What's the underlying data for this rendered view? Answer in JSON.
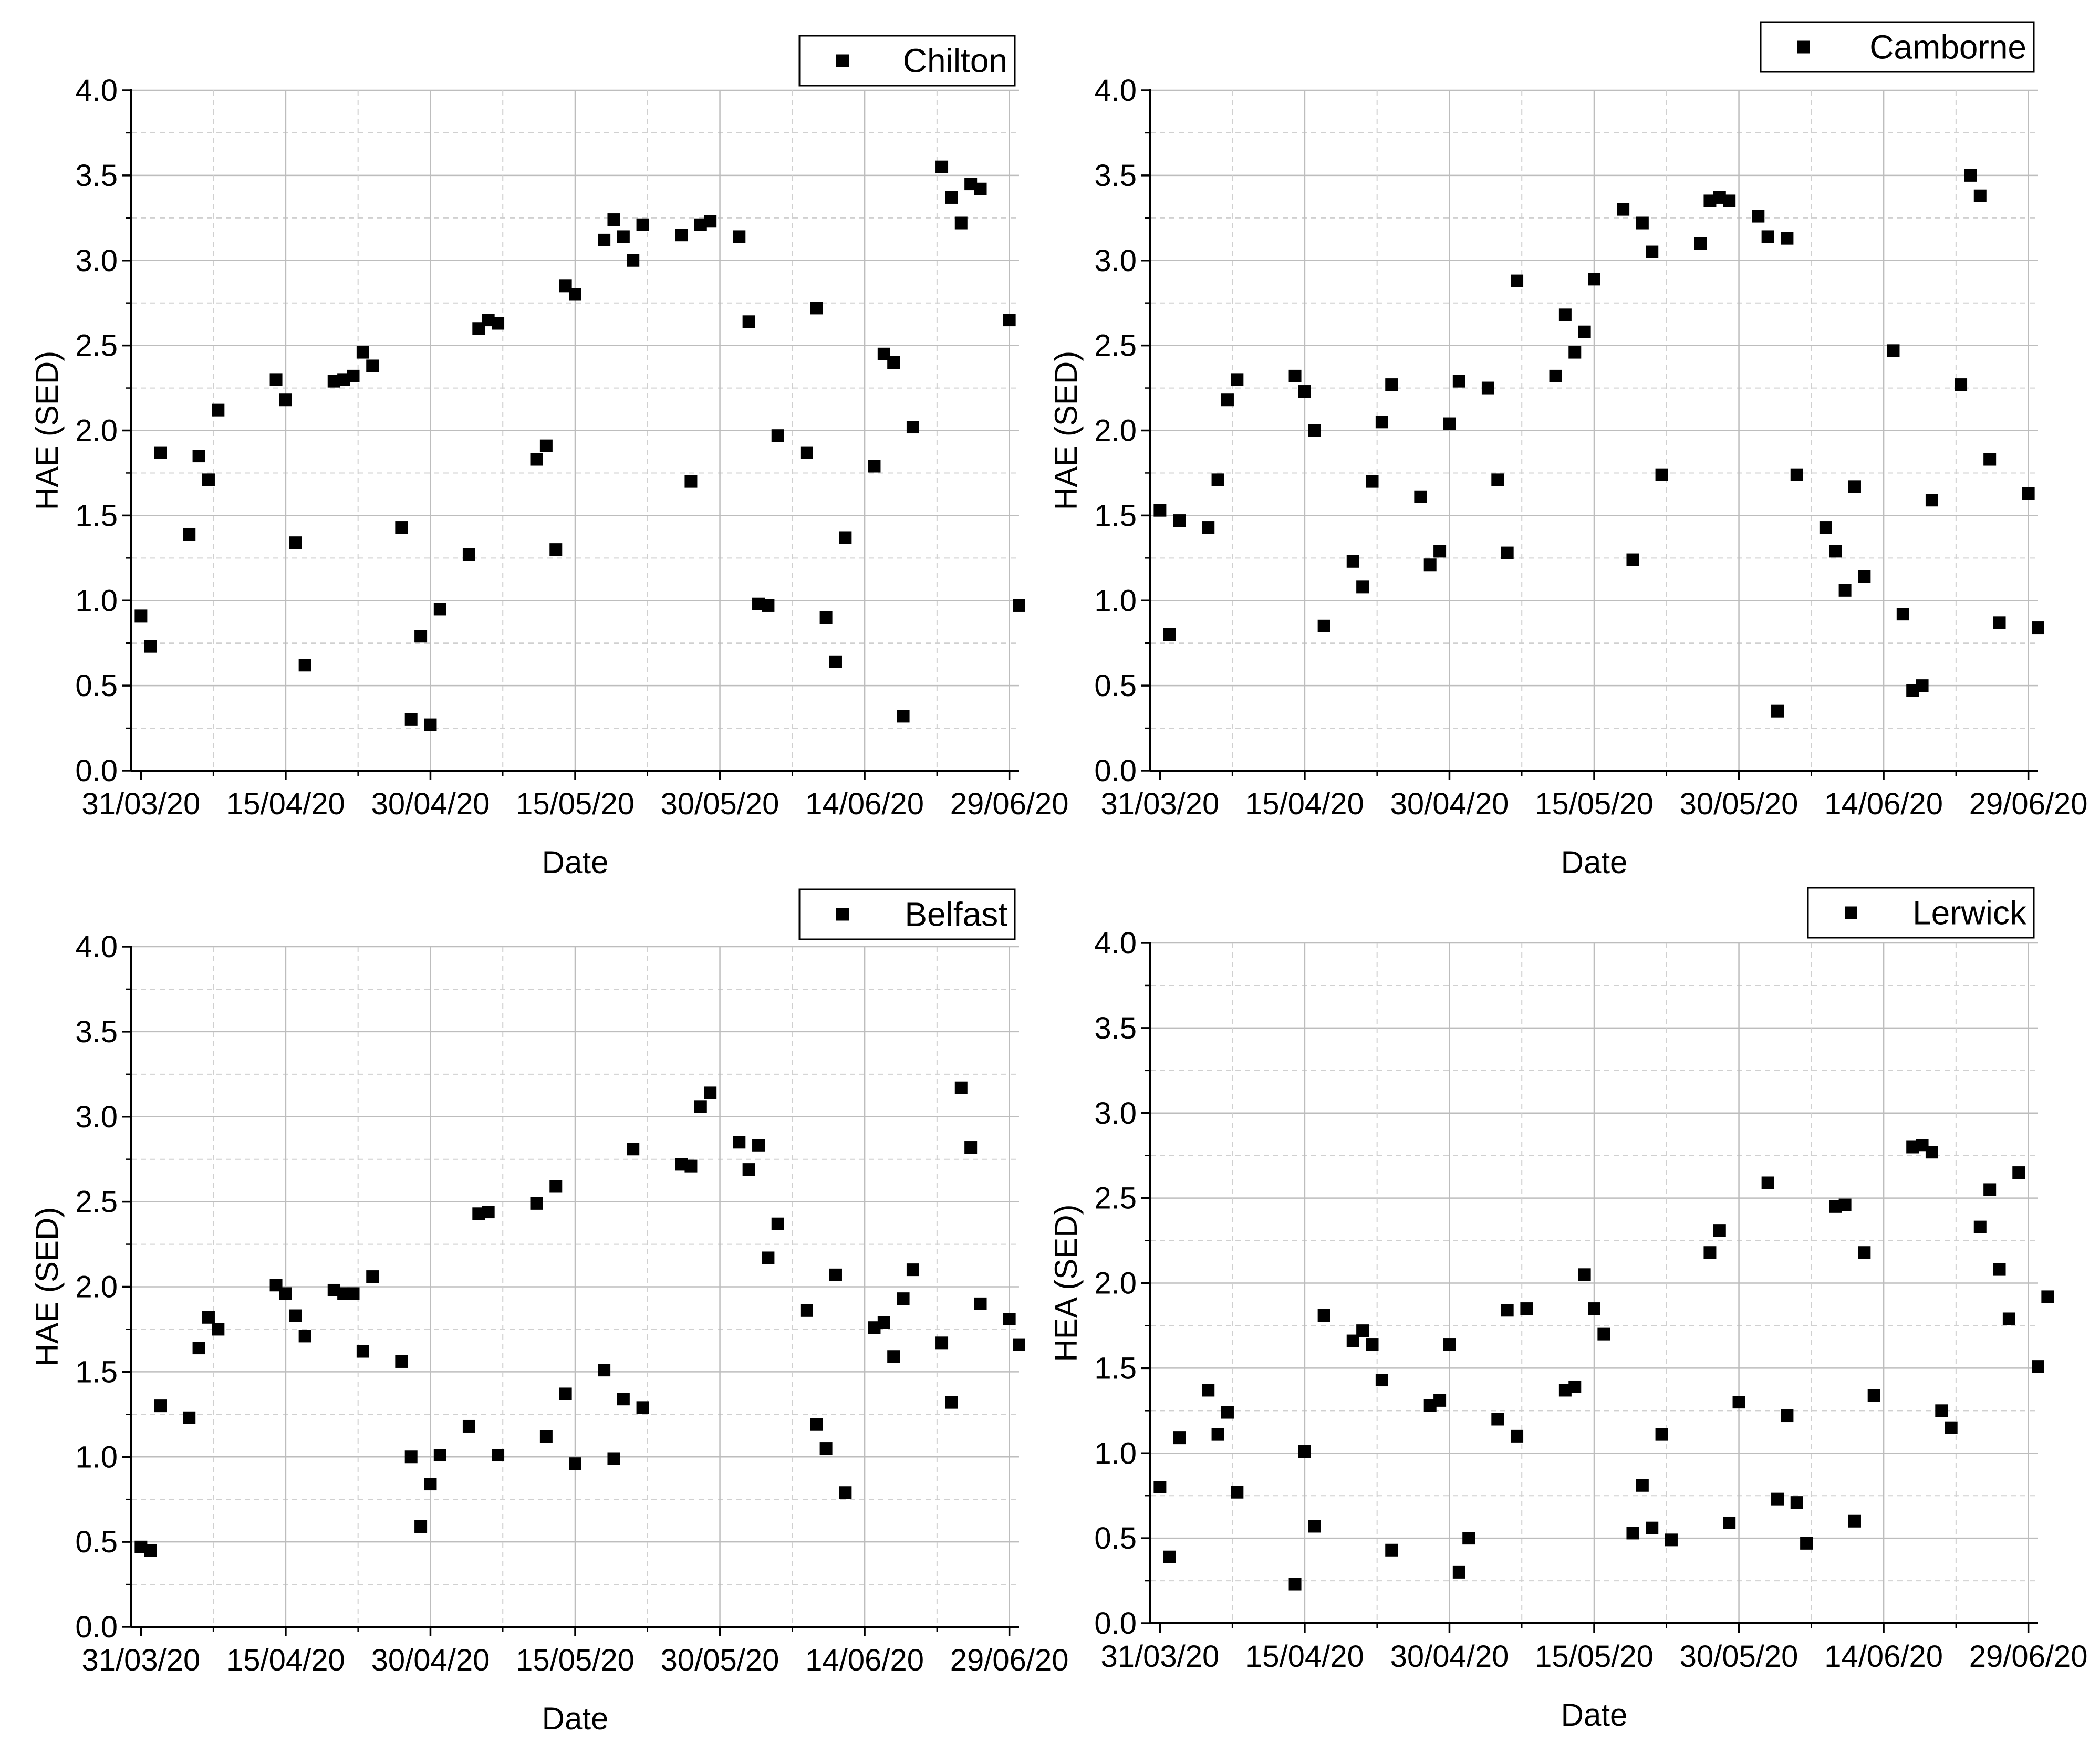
{
  "chart_data": [
    {
      "type": "scatter",
      "legend": "Chilton",
      "xlabel": "Date",
      "ylabel": "HAE (SED)",
      "xlim": [
        "30/03/20",
        "30/06/20"
      ],
      "ylim": [
        0,
        4.0
      ],
      "xticks": [
        "31/03/20",
        "15/04/20",
        "30/04/20",
        "15/05/20",
        "30/05/20",
        "14/06/20",
        "29/06/20"
      ],
      "yticks": [
        "0.0",
        "0.5",
        "1.0",
        "1.5",
        "2.0",
        "2.5",
        "3.0",
        "3.5",
        "4.0"
      ],
      "grid": true,
      "legend_position": "top-right",
      "points": [
        [
          "31/03/20",
          0.91
        ],
        [
          "01/04/20",
          0.73
        ],
        [
          "02/04/20",
          1.87
        ],
        [
          "05/04/20",
          1.39
        ],
        [
          "06/04/20",
          1.85
        ],
        [
          "07/04/20",
          1.71
        ],
        [
          "08/04/20",
          2.12
        ],
        [
          "14/04/20",
          2.3
        ],
        [
          "15/04/20",
          2.18
        ],
        [
          "16/04/20",
          1.34
        ],
        [
          "17/04/20",
          0.62
        ],
        [
          "20/04/20",
          2.29
        ],
        [
          "21/04/20",
          2.3
        ],
        [
          "22/04/20",
          2.32
        ],
        [
          "23/04/20",
          2.46
        ],
        [
          "24/04/20",
          2.38
        ],
        [
          "27/04/20",
          1.43
        ],
        [
          "28/04/20",
          0.3
        ],
        [
          "29/04/20",
          0.79
        ],
        [
          "30/04/20",
          0.27
        ],
        [
          "01/05/20",
          0.95
        ],
        [
          "04/05/20",
          1.27
        ],
        [
          "05/05/20",
          2.6
        ],
        [
          "06/05/20",
          2.65
        ],
        [
          "07/05/20",
          2.63
        ],
        [
          "11/05/20",
          1.83
        ],
        [
          "12/05/20",
          1.91
        ],
        [
          "13/05/20",
          1.3
        ],
        [
          "14/05/20",
          2.85
        ],
        [
          "15/05/20",
          2.8
        ],
        [
          "18/05/20",
          3.12
        ],
        [
          "19/05/20",
          3.24
        ],
        [
          "20/05/20",
          3.14
        ],
        [
          "21/05/20",
          3.0
        ],
        [
          "22/05/20",
          3.21
        ],
        [
          "26/05/20",
          3.15
        ],
        [
          "27/05/20",
          1.7
        ],
        [
          "28/05/20",
          3.21
        ],
        [
          "29/05/20",
          3.23
        ],
        [
          "01/06/20",
          3.14
        ],
        [
          "02/06/20",
          2.64
        ],
        [
          "03/06/20",
          0.98
        ],
        [
          "04/06/20",
          0.97
        ],
        [
          "05/06/20",
          1.97
        ],
        [
          "08/06/20",
          1.87
        ],
        [
          "09/06/20",
          2.72
        ],
        [
          "10/06/20",
          0.9
        ],
        [
          "11/06/20",
          0.64
        ],
        [
          "12/06/20",
          1.37
        ],
        [
          "15/06/20",
          1.79
        ],
        [
          "16/06/20",
          2.45
        ],
        [
          "17/06/20",
          2.4
        ],
        [
          "18/06/20",
          0.32
        ],
        [
          "19/06/20",
          2.02
        ],
        [
          "22/06/20",
          3.55
        ],
        [
          "23/06/20",
          3.37
        ],
        [
          "24/06/20",
          3.22
        ],
        [
          "25/06/20",
          3.45
        ],
        [
          "26/06/20",
          3.42
        ],
        [
          "29/06/20",
          2.65
        ],
        [
          "30/06/20",
          0.97
        ]
      ]
    },
    {
      "type": "scatter",
      "legend": "Camborne",
      "xlabel": "Date",
      "ylabel": "HAE (SED)",
      "xlim": [
        "30/03/20",
        "30/06/20"
      ],
      "ylim": [
        0,
        4.0
      ],
      "xticks": [
        "31/03/20",
        "15/04/20",
        "30/04/20",
        "15/05/20",
        "30/05/20",
        "14/06/20",
        "29/06/20"
      ],
      "yticks": [
        "0.0",
        "0.5",
        "1.0",
        "1.5",
        "2.0",
        "2.5",
        "3.0",
        "3.5",
        "4.0"
      ],
      "grid": true,
      "legend_position": "top-right",
      "points": [
        [
          "31/03/20",
          1.53
        ],
        [
          "01/04/20",
          0.8
        ],
        [
          "02/04/20",
          1.47
        ],
        [
          "05/04/20",
          1.43
        ],
        [
          "06/04/20",
          1.71
        ],
        [
          "07/04/20",
          2.18
        ],
        [
          "08/04/20",
          2.3
        ],
        [
          "14/04/20",
          2.32
        ],
        [
          "15/04/20",
          2.23
        ],
        [
          "16/04/20",
          2.0
        ],
        [
          "17/04/20",
          0.85
        ],
        [
          "20/04/20",
          1.23
        ],
        [
          "21/04/20",
          1.08
        ],
        [
          "22/04/20",
          1.7
        ],
        [
          "23/04/20",
          2.05
        ],
        [
          "24/04/20",
          2.27
        ],
        [
          "27/04/20",
          1.61
        ],
        [
          "28/04/20",
          1.21
        ],
        [
          "29/04/20",
          1.29
        ],
        [
          "30/04/20",
          2.04
        ],
        [
          "01/05/20",
          2.29
        ],
        [
          "04/05/20",
          2.25
        ],
        [
          "05/05/20",
          1.71
        ],
        [
          "06/05/20",
          1.28
        ],
        [
          "07/05/20",
          2.88
        ],
        [
          "11/05/20",
          2.32
        ],
        [
          "12/05/20",
          2.68
        ],
        [
          "13/05/20",
          2.46
        ],
        [
          "14/05/20",
          2.58
        ],
        [
          "15/05/20",
          2.89
        ],
        [
          "18/05/20",
          3.3
        ],
        [
          "19/05/20",
          1.24
        ],
        [
          "20/05/20",
          3.22
        ],
        [
          "21/05/20",
          3.05
        ],
        [
          "22/05/20",
          1.74
        ],
        [
          "26/05/20",
          3.1
        ],
        [
          "27/05/20",
          3.35
        ],
        [
          "28/05/20",
          3.37
        ],
        [
          "29/05/20",
          3.35
        ],
        [
          "01/06/20",
          3.26
        ],
        [
          "02/06/20",
          3.14
        ],
        [
          "03/06/20",
          0.35
        ],
        [
          "04/06/20",
          3.13
        ],
        [
          "05/06/20",
          1.74
        ],
        [
          "08/06/20",
          1.43
        ],
        [
          "09/06/20",
          1.29
        ],
        [
          "10/06/20",
          1.06
        ],
        [
          "11/06/20",
          1.67
        ],
        [
          "12/06/20",
          1.14
        ],
        [
          "15/06/20",
          2.47
        ],
        [
          "16/06/20",
          0.92
        ],
        [
          "17/06/20",
          0.47
        ],
        [
          "18/06/20",
          0.5
        ],
        [
          "19/06/20",
          1.59
        ],
        [
          "22/06/20",
          2.27
        ],
        [
          "23/06/20",
          3.5
        ],
        [
          "24/06/20",
          3.38
        ],
        [
          "25/06/20",
          1.83
        ],
        [
          "26/06/20",
          0.87
        ],
        [
          "29/06/20",
          1.63
        ],
        [
          "30/06/20",
          0.84
        ]
      ]
    },
    {
      "type": "scatter",
      "legend": "Belfast",
      "xlabel": "Date",
      "ylabel": "HAE (SED)",
      "xlim": [
        "30/03/20",
        "30/06/20"
      ],
      "ylim": [
        0,
        4.0
      ],
      "xticks": [
        "31/03/20",
        "15/04/20",
        "30/04/20",
        "15/05/20",
        "30/05/20",
        "14/06/20",
        "29/06/20"
      ],
      "yticks": [
        "0.0",
        "0.5",
        "1.0",
        "1.5",
        "2.0",
        "2.5",
        "3.0",
        "3.5",
        "4.0"
      ],
      "grid": true,
      "legend_position": "top-right",
      "points": [
        [
          "31/03/20",
          0.47
        ],
        [
          "01/04/20",
          0.45
        ],
        [
          "02/04/20",
          1.3
        ],
        [
          "05/04/20",
          1.23
        ],
        [
          "06/04/20",
          1.64
        ],
        [
          "07/04/20",
          1.82
        ],
        [
          "08/04/20",
          1.75
        ],
        [
          "14/04/20",
          2.01
        ],
        [
          "15/04/20",
          1.96
        ],
        [
          "16/04/20",
          1.83
        ],
        [
          "17/04/20",
          1.71
        ],
        [
          "20/04/20",
          1.98
        ],
        [
          "21/04/20",
          1.96
        ],
        [
          "22/04/20",
          1.96
        ],
        [
          "23/04/20",
          1.62
        ],
        [
          "24/04/20",
          2.06
        ],
        [
          "27/04/20",
          1.56
        ],
        [
          "28/04/20",
          1.0
        ],
        [
          "29/04/20",
          0.59
        ],
        [
          "30/04/20",
          0.84
        ],
        [
          "01/05/20",
          1.01
        ],
        [
          "04/05/20",
          1.18
        ],
        [
          "05/05/20",
          2.43
        ],
        [
          "06/05/20",
          2.44
        ],
        [
          "07/05/20",
          1.01
        ],
        [
          "11/05/20",
          2.49
        ],
        [
          "12/05/20",
          1.12
        ],
        [
          "13/05/20",
          2.59
        ],
        [
          "14/05/20",
          1.37
        ],
        [
          "15/05/20",
          0.96
        ],
        [
          "18/05/20",
          1.51
        ],
        [
          "19/05/20",
          0.99
        ],
        [
          "20/05/20",
          1.34
        ],
        [
          "21/05/20",
          2.81
        ],
        [
          "22/05/20",
          1.29
        ],
        [
          "26/05/20",
          2.72
        ],
        [
          "27/05/20",
          2.71
        ],
        [
          "28/05/20",
          3.06
        ],
        [
          "29/05/20",
          3.14
        ],
        [
          "01/06/20",
          2.85
        ],
        [
          "02/06/20",
          2.69
        ],
        [
          "03/06/20",
          2.83
        ],
        [
          "04/06/20",
          2.17
        ],
        [
          "05/06/20",
          2.37
        ],
        [
          "08/06/20",
          1.86
        ],
        [
          "09/06/20",
          1.19
        ],
        [
          "10/06/20",
          1.05
        ],
        [
          "11/06/20",
          2.07
        ],
        [
          "12/06/20",
          0.79
        ],
        [
          "15/06/20",
          1.76
        ],
        [
          "16/06/20",
          1.79
        ],
        [
          "17/06/20",
          1.59
        ],
        [
          "18/06/20",
          1.93
        ],
        [
          "19/06/20",
          2.1
        ],
        [
          "22/06/20",
          1.67
        ],
        [
          "23/06/20",
          1.32
        ],
        [
          "24/06/20",
          3.17
        ],
        [
          "25/06/20",
          2.82
        ],
        [
          "26/06/20",
          1.9
        ],
        [
          "29/06/20",
          1.81
        ],
        [
          "30/06/20",
          1.66
        ]
      ]
    },
    {
      "type": "scatter",
      "legend": "Lerwick",
      "xlabel": "Date",
      "ylabel": "HEA (SED)",
      "xlim": [
        "30/03/20",
        "30/06/20"
      ],
      "ylim": [
        0,
        4.0
      ],
      "xticks": [
        "31/03/20",
        "15/04/20",
        "30/04/20",
        "15/05/20",
        "30/05/20",
        "14/06/20",
        "29/06/20"
      ],
      "yticks": [
        "0.0",
        "0.5",
        "1.0",
        "1.5",
        "2.0",
        "2.5",
        "3.0",
        "3.5",
        "4.0"
      ],
      "grid": true,
      "legend_position": "top-right",
      "points": [
        [
          "31/03/20",
          0.8
        ],
        [
          "01/04/20",
          0.39
        ],
        [
          "02/04/20",
          1.09
        ],
        [
          "05/04/20",
          1.37
        ],
        [
          "06/04/20",
          1.11
        ],
        [
          "07/04/20",
          1.24
        ],
        [
          "08/04/20",
          0.77
        ],
        [
          "14/04/20",
          0.23
        ],
        [
          "15/04/20",
          1.01
        ],
        [
          "16/04/20",
          0.57
        ],
        [
          "17/04/20",
          1.81
        ],
        [
          "20/04/20",
          1.66
        ],
        [
          "21/04/20",
          1.72
        ],
        [
          "22/04/20",
          1.64
        ],
        [
          "23/04/20",
          1.43
        ],
        [
          "24/04/20",
          0.43
        ],
        [
          "28/04/20",
          1.28
        ],
        [
          "29/04/20",
          1.31
        ],
        [
          "30/04/20",
          1.64
        ],
        [
          "01/05/20",
          0.3
        ],
        [
          "02/05/20",
          0.5
        ],
        [
          "05/05/20",
          1.2
        ],
        [
          "06/05/20",
          1.84
        ],
        [
          "07/05/20",
          1.1
        ],
        [
          "08/05/20",
          1.85
        ],
        [
          "12/05/20",
          1.37
        ],
        [
          "13/05/20",
          1.39
        ],
        [
          "14/05/20",
          2.05
        ],
        [
          "15/05/20",
          1.85
        ],
        [
          "16/05/20",
          1.7
        ],
        [
          "19/05/20",
          0.53
        ],
        [
          "20/05/20",
          0.81
        ],
        [
          "21/05/20",
          0.56
        ],
        [
          "22/05/20",
          1.11
        ],
        [
          "23/05/20",
          0.49
        ],
        [
          "27/05/20",
          2.18
        ],
        [
          "28/05/20",
          2.31
        ],
        [
          "29/05/20",
          0.59
        ],
        [
          "30/05/20",
          1.3
        ],
        [
          "02/06/20",
          2.59
        ],
        [
          "03/06/20",
          0.73
        ],
        [
          "04/06/20",
          1.22
        ],
        [
          "05/06/20",
          0.71
        ],
        [
          "06/06/20",
          0.47
        ],
        [
          "09/06/20",
          2.45
        ],
        [
          "10/06/20",
          2.46
        ],
        [
          "11/06/20",
          0.6
        ],
        [
          "12/06/20",
          2.18
        ],
        [
          "13/06/20",
          1.34
        ],
        [
          "17/06/20",
          2.8
        ],
        [
          "18/06/20",
          2.81
        ],
        [
          "19/06/20",
          2.77
        ],
        [
          "20/06/20",
          1.25
        ],
        [
          "21/06/20",
          1.15
        ],
        [
          "24/06/20",
          2.33
        ],
        [
          "25/06/20",
          2.55
        ],
        [
          "26/06/20",
          2.08
        ],
        [
          "27/06/20",
          1.79
        ],
        [
          "28/06/20",
          2.65
        ],
        [
          "30/06/20",
          1.51
        ],
        [
          "01/07/20",
          1.92
        ]
      ]
    }
  ]
}
